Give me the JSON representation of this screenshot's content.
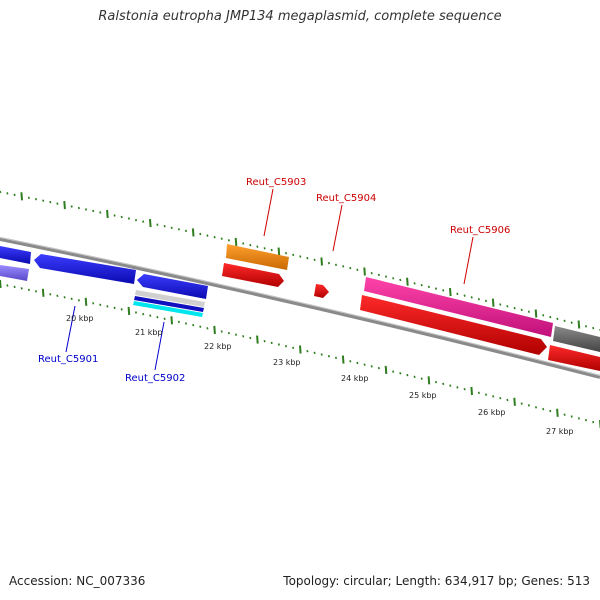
{
  "title": "Ralstonia eutropha JMP134 megaplasmid, complete sequence",
  "footer": {
    "accession": "Accession: NC_007336",
    "summary": "Topology: circular; Length: 634,917 bp; Genes: 513"
  },
  "scale_labels": [
    "20 kbp",
    "21 kbp",
    "22 kbp",
    "23 kbp",
    "24 kbp",
    "25 kbp",
    "26 kbp",
    "27 kbp"
  ],
  "gene_labels": [
    {
      "id": "c5901",
      "text": "Reut_C5901"
    },
    {
      "id": "c5902",
      "text": "Reut_C5902"
    },
    {
      "id": "c5903",
      "text": "Reut_C5903"
    },
    {
      "id": "c5904",
      "text": "Reut_C5904"
    },
    {
      "id": "c5906",
      "text": "Reut_C5906"
    }
  ],
  "colors": {
    "backbone": "#8a8a8a",
    "ticks": "#2e7d1e",
    "label_blue": "#0000cc",
    "label_red": "#cc0000",
    "gene_blue": "#1a1aee",
    "gene_purple": "#7b68ee",
    "gene_cyan": "#00e5ee",
    "gene_orange": "#ff8c00",
    "gene_red": "#ee0000",
    "gene_pink": "#ff1493",
    "gene_gray": "#666666"
  }
}
